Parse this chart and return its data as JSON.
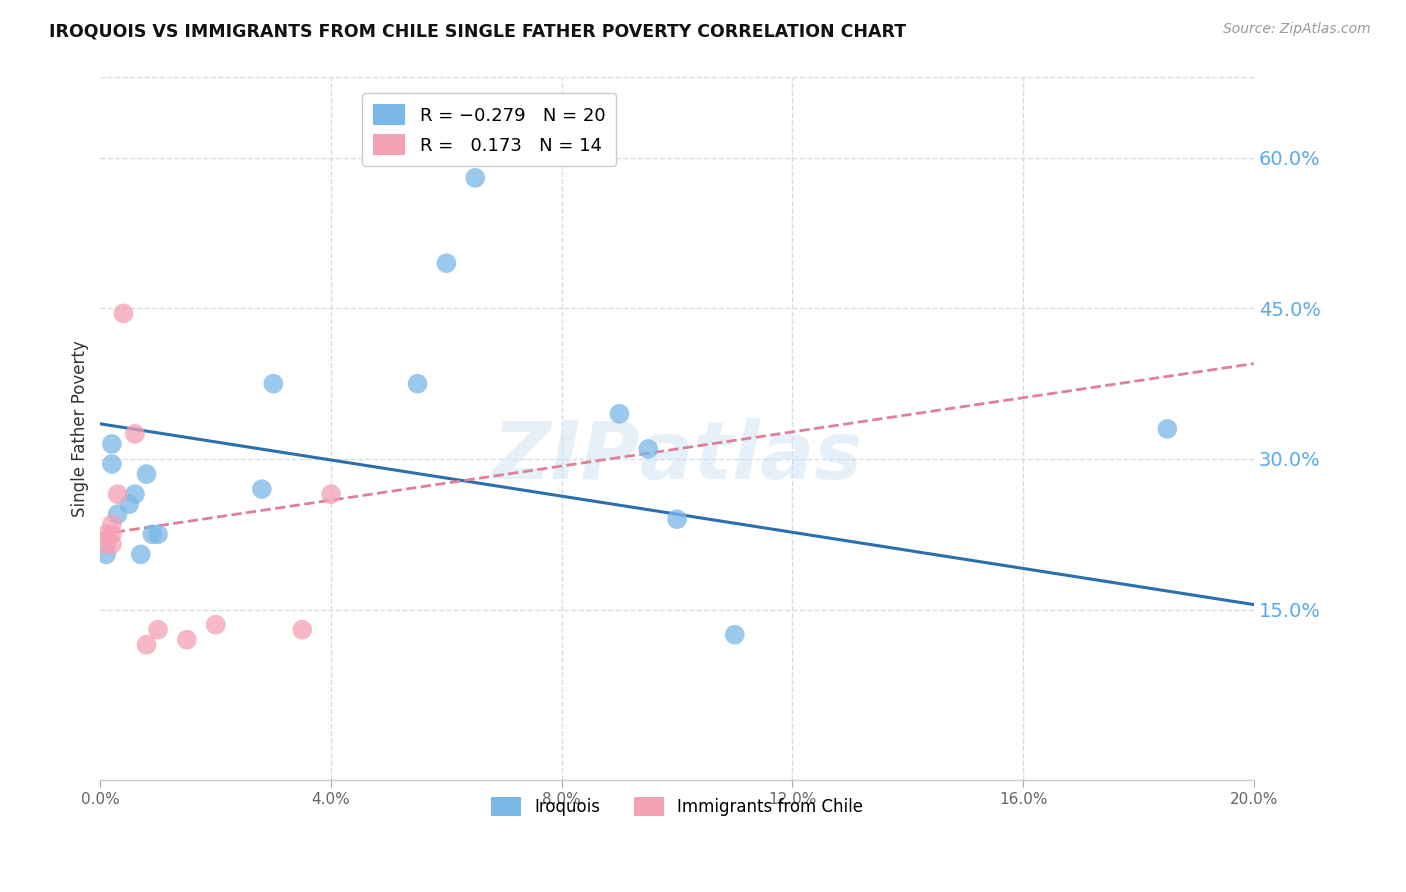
{
  "title": "IROQUOIS VS IMMIGRANTS FROM CHILE SINGLE FATHER POVERTY CORRELATION CHART",
  "source": "Source: ZipAtlas.com",
  "ylabel": "Single Father Poverty",
  "legend_label1": "Iroquois",
  "legend_label2": "Immigrants from Chile",
  "color_iroquois": "#7ab8e8",
  "color_chile": "#f4a0b5",
  "color_line_iroquois": "#2c6fad",
  "color_line_chile": "#e08098",
  "color_right_axis": "#5aaaee",
  "background_color": "#ffffff",
  "grid_color": "#d4dce8",
  "iroquois_x": [
    0.001,
    0.002,
    0.002,
    0.003,
    0.005,
    0.006,
    0.007,
    0.008,
    0.009,
    0.01,
    0.028,
    0.03,
    0.055,
    0.06,
    0.065,
    0.09,
    0.095,
    0.1,
    0.11,
    0.185
  ],
  "iroquois_y": [
    0.205,
    0.315,
    0.295,
    0.245,
    0.255,
    0.265,
    0.205,
    0.285,
    0.225,
    0.225,
    0.27,
    0.375,
    0.375,
    0.495,
    0.58,
    0.345,
    0.31,
    0.24,
    0.125,
    0.33
  ],
  "chile_x": [
    0.001,
    0.001,
    0.002,
    0.002,
    0.002,
    0.003,
    0.004,
    0.006,
    0.008,
    0.01,
    0.015,
    0.02,
    0.035,
    0.04
  ],
  "chile_y": [
    0.225,
    0.215,
    0.225,
    0.215,
    0.235,
    0.265,
    0.445,
    0.325,
    0.115,
    0.13,
    0.12,
    0.135,
    0.13,
    0.265
  ],
  "xlim": [
    -0.003,
    0.203
  ],
  "ylim": [
    -0.02,
    0.68
  ],
  "plot_xlim": [
    0.0,
    0.2
  ],
  "x_ticks": [
    0.0,
    0.04,
    0.08,
    0.12,
    0.16,
    0.2
  ],
  "y_ticks": [
    0.15,
    0.3,
    0.45,
    0.6
  ],
  "figsize": [
    14.06,
    8.92
  ],
  "dpi": 100,
  "line_iq_x0": 0.0,
  "line_iq_y0": 0.335,
  "line_iq_x1": 0.2,
  "line_iq_y1": 0.155,
  "line_ch_x0": 0.0,
  "line_ch_y0": 0.225,
  "line_ch_x1": 0.2,
  "line_ch_y1": 0.395
}
